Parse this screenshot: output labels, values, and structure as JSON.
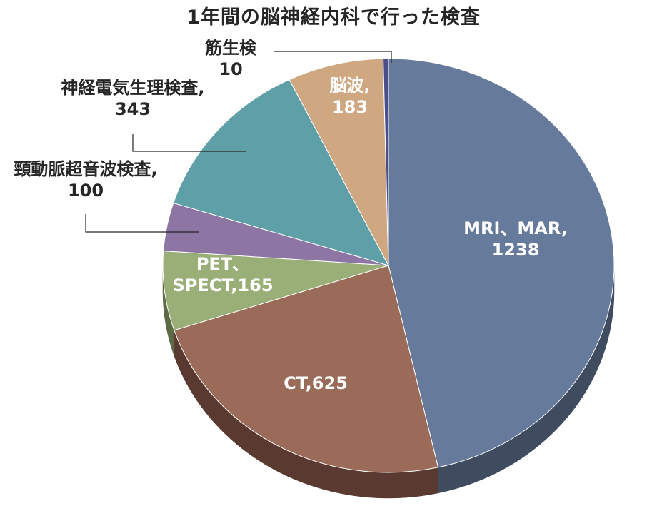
{
  "chart_data": {
    "type": "pie",
    "title": "1年間の脳神経内科で行った検査",
    "slices": [
      {
        "category": "MRI、MAR,",
        "value": 1238,
        "value_text": "1238",
        "color": "#667a9b",
        "side_color": "#3f4b5f"
      },
      {
        "category": "CT,",
        "value": 625,
        "value_text": "625",
        "color": "#9a6b58",
        "side_color": "#5a3a30"
      },
      {
        "category": "PET、\nSPECT,",
        "value": 165,
        "value_text": "165",
        "color": "#9aaf78",
        "side_color": "#5c6a45"
      },
      {
        "category": "頸動脈超音波検査,",
        "value": 100,
        "value_text": "100",
        "color": "#8d76a3",
        "side_color": "#54466a"
      },
      {
        "category": "神経電気生理検査,",
        "value": 343,
        "value_text": "343",
        "color": "#5e9fa8",
        "side_color": "#386268"
      },
      {
        "category": "脳波,",
        "value": 183,
        "value_text": "183",
        "color": "#cfa882",
        "side_color": "#7e6548"
      },
      {
        "category": "筋生検",
        "value": 10,
        "value_text": "10",
        "color": "#4a4f8c",
        "side_color": "#2b2e55"
      }
    ],
    "legend": "none",
    "data_labels": "category and value"
  }
}
